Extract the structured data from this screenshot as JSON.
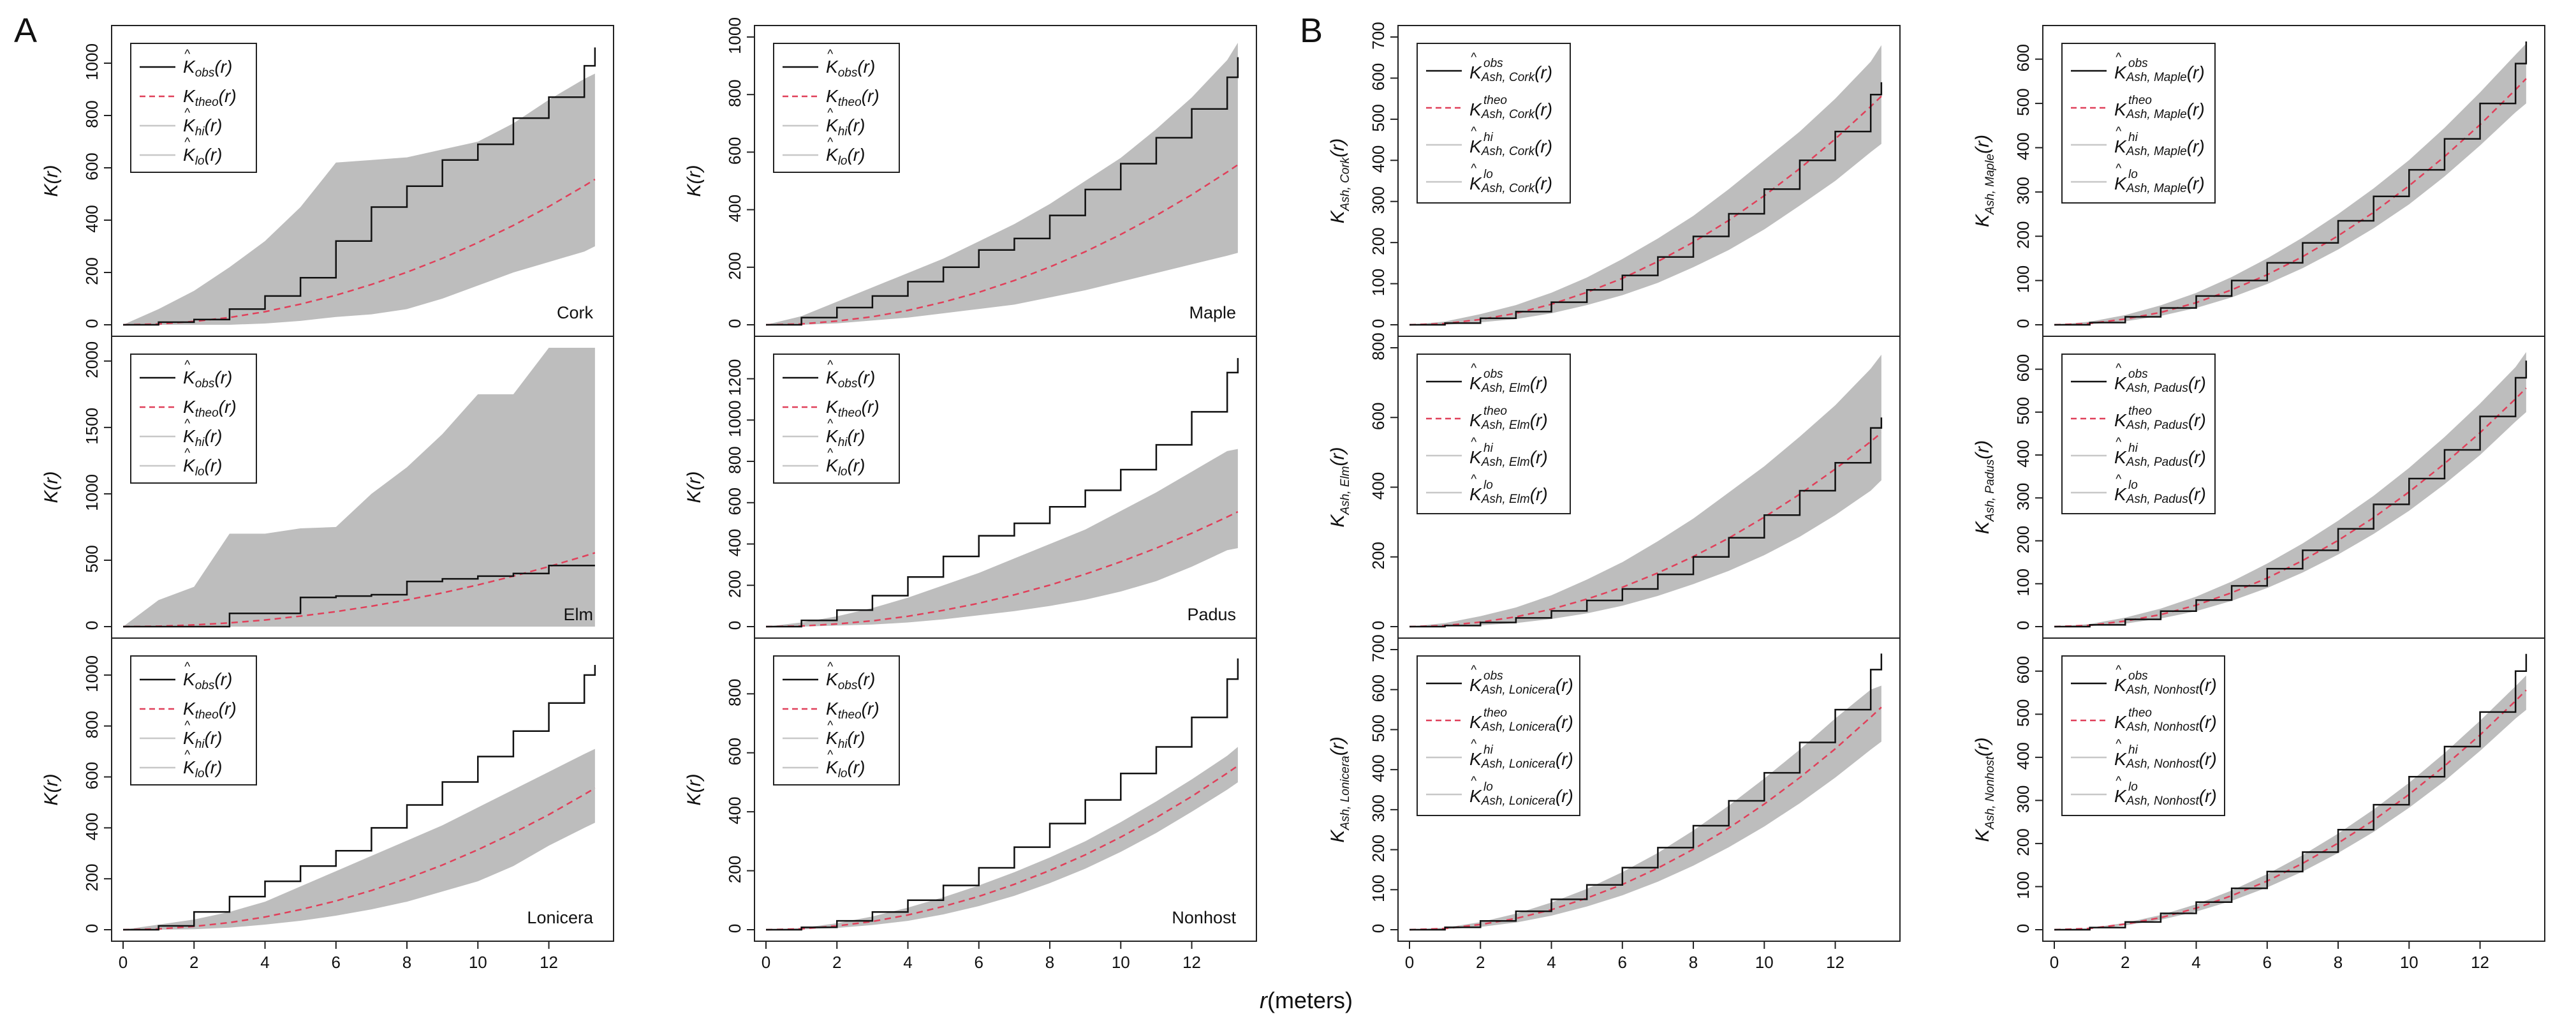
{
  "figure": {
    "panel_a_letter": "A",
    "panel_b_letter": "B",
    "xlabel_r": "r",
    "xlabel_rest": "(meters)"
  },
  "chart_data": [
    {
      "type": "line",
      "group": "A",
      "name": "Cork",
      "ylabel": "K(r)",
      "legend": "A",
      "xlim": [
        0,
        13.5
      ],
      "ylim": [
        0,
        1100
      ],
      "yticks": [
        0,
        200,
        400,
        600,
        800,
        1000
      ],
      "xticks": [
        0,
        2,
        4,
        6,
        8,
        10,
        12
      ],
      "r": [
        0,
        1,
        2,
        3,
        4,
        5,
        6,
        7,
        8,
        9,
        10,
        11,
        12,
        13,
        13.3
      ],
      "obs": [
        0,
        10,
        20,
        60,
        110,
        180,
        320,
        450,
        530,
        630,
        690,
        790,
        870,
        990,
        1060
      ],
      "theo": [
        0,
        3,
        13,
        28,
        50,
        79,
        113,
        154,
        201,
        254,
        314,
        380,
        452,
        531,
        556
      ],
      "hi": [
        0,
        60,
        130,
        220,
        320,
        450,
        620,
        630,
        640,
        670,
        700,
        770,
        860,
        940,
        960
      ],
      "lo": [
        0,
        0,
        0,
        0,
        5,
        15,
        30,
        40,
        60,
        100,
        150,
        200,
        240,
        280,
        300
      ]
    },
    {
      "type": "line",
      "group": "A",
      "name": "Elm",
      "ylabel": "K(r)",
      "legend": "A",
      "xlim": [
        0,
        13.5
      ],
      "ylim": [
        0,
        2100
      ],
      "yticks": [
        0,
        500,
        1000,
        1500,
        2000
      ],
      "xticks": [
        0,
        2,
        4,
        6,
        8,
        10,
        12
      ],
      "r": [
        0,
        1,
        2,
        3,
        4,
        5,
        6,
        7,
        8,
        9,
        10,
        11,
        12,
        13,
        13.3
      ],
      "obs": [
        0,
        0,
        0,
        100,
        100,
        220,
        230,
        240,
        340,
        360,
        380,
        400,
        460,
        460,
        460
      ],
      "theo": [
        0,
        3,
        13,
        28,
        50,
        79,
        113,
        154,
        201,
        254,
        314,
        380,
        452,
        531,
        556
      ],
      "hi": [
        0,
        200,
        300,
        700,
        700,
        740,
        750,
        1000,
        1200,
        1450,
        1750,
        1750,
        2100,
        2100,
        2100
      ],
      "lo": [
        0,
        0,
        0,
        0,
        0,
        0,
        0,
        0,
        0,
        0,
        0,
        0,
        0,
        0,
        0
      ]
    },
    {
      "type": "line",
      "group": "A",
      "name": "Lonicera",
      "ylabel": "K(r)",
      "legend": "A",
      "xlim": [
        0,
        13.5
      ],
      "ylim": [
        0,
        1100
      ],
      "yticks": [
        0,
        200,
        400,
        600,
        800,
        1000
      ],
      "xticks": [
        0,
        2,
        4,
        6,
        8,
        10,
        12
      ],
      "r": [
        0,
        1,
        2,
        3,
        4,
        5,
        6,
        7,
        8,
        9,
        10,
        11,
        12,
        13,
        13.3
      ],
      "obs": [
        0,
        15,
        70,
        130,
        190,
        250,
        310,
        400,
        490,
        580,
        680,
        780,
        890,
        1000,
        1040
      ],
      "theo": [
        0,
        3,
        13,
        28,
        50,
        79,
        113,
        154,
        201,
        254,
        314,
        380,
        452,
        531,
        556
      ],
      "hi": [
        0,
        20,
        40,
        70,
        110,
        170,
        230,
        290,
        350,
        410,
        480,
        550,
        620,
        690,
        710
      ],
      "lo": [
        0,
        0,
        2,
        8,
        20,
        35,
        55,
        80,
        110,
        150,
        190,
        250,
        330,
        400,
        420
      ]
    },
    {
      "type": "line",
      "group": "A",
      "name": "Maple",
      "ylabel": "K(r)",
      "legend": "A",
      "xlim": [
        0,
        13.5
      ],
      "ylim": [
        0,
        1000
      ],
      "yticks": [
        0,
        200,
        400,
        600,
        800,
        1000
      ],
      "xticks": [
        0,
        2,
        4,
        6,
        8,
        10,
        12
      ],
      "r": [
        0,
        1,
        2,
        3,
        4,
        5,
        6,
        7,
        8,
        9,
        10,
        11,
        12,
        13,
        13.3
      ],
      "obs": [
        0,
        25,
        60,
        100,
        150,
        200,
        260,
        300,
        380,
        470,
        560,
        650,
        750,
        860,
        930
      ],
      "theo": [
        0,
        3,
        13,
        28,
        50,
        79,
        113,
        154,
        201,
        254,
        314,
        380,
        452,
        531,
        556
      ],
      "hi": [
        0,
        30,
        80,
        130,
        180,
        230,
        290,
        350,
        420,
        500,
        580,
        680,
        790,
        920,
        980
      ],
      "lo": [
        0,
        0,
        5,
        15,
        25,
        40,
        55,
        70,
        95,
        120,
        150,
        180,
        210,
        240,
        250
      ]
    },
    {
      "type": "line",
      "group": "A",
      "name": "Padus",
      "ylabel": "K(r)",
      "legend": "A",
      "xlim": [
        0,
        13.5
      ],
      "ylim": [
        0,
        1350
      ],
      "yticks": [
        0,
        200,
        400,
        600,
        800,
        1000,
        1200
      ],
      "xticks": [
        0,
        2,
        4,
        6,
        8,
        10,
        12
      ],
      "r": [
        0,
        1,
        2,
        3,
        4,
        5,
        6,
        7,
        8,
        9,
        10,
        11,
        12,
        13,
        13.3
      ],
      "obs": [
        0,
        30,
        80,
        150,
        240,
        340,
        440,
        500,
        580,
        660,
        760,
        880,
        1040,
        1230,
        1300
      ],
      "theo": [
        0,
        3,
        13,
        28,
        50,
        79,
        113,
        154,
        201,
        254,
        314,
        380,
        452,
        531,
        556
      ],
      "hi": [
        0,
        20,
        50,
        90,
        140,
        200,
        260,
        330,
        400,
        470,
        560,
        650,
        750,
        850,
        860
      ],
      "lo": [
        0,
        0,
        5,
        10,
        20,
        35,
        55,
        75,
        100,
        130,
        170,
        220,
        290,
        370,
        380
      ]
    },
    {
      "type": "line",
      "group": "A",
      "name": "Nonhost",
      "ylabel": "K(r)",
      "legend": "A",
      "xlim": [
        0,
        13.5
      ],
      "ylim": [
        0,
        950
      ],
      "yticks": [
        0,
        200,
        400,
        600,
        800
      ],
      "xticks": [
        0,
        2,
        4,
        6,
        8,
        10,
        12
      ],
      "r": [
        0,
        1,
        2,
        3,
        4,
        5,
        6,
        7,
        8,
        9,
        10,
        11,
        12,
        13,
        13.3
      ],
      "obs": [
        0,
        8,
        30,
        60,
        100,
        150,
        210,
        280,
        360,
        440,
        530,
        620,
        720,
        850,
        920
      ],
      "theo": [
        0,
        3,
        13,
        28,
        50,
        79,
        113,
        154,
        201,
        254,
        314,
        380,
        452,
        531,
        556
      ],
      "hi": [
        0,
        6,
        22,
        45,
        75,
        110,
        150,
        195,
        245,
        300,
        365,
        435,
        510,
        590,
        620
      ],
      "lo": [
        0,
        1,
        6,
        16,
        30,
        52,
        80,
        115,
        158,
        207,
        264,
        328,
        400,
        475,
        500
      ]
    },
    {
      "type": "line",
      "group": "B",
      "name": "Cork",
      "ylabel_main": "K",
      "ylabel_sub": "Ash, Cork",
      "ylabel_tail": "(r)",
      "legend": "B",
      "xlim": [
        0,
        13.5
      ],
      "ylim": [
        0,
        700
      ],
      "yticks": [
        0,
        100,
        200,
        300,
        400,
        500,
        600,
        700
      ],
      "xticks": [
        0,
        2,
        4,
        6,
        8,
        10,
        12
      ],
      "r": [
        0,
        1,
        2,
        3,
        4,
        5,
        6,
        7,
        8,
        9,
        10,
        11,
        12,
        13,
        13.3
      ],
      "obs": [
        0,
        4,
        16,
        32,
        55,
        85,
        120,
        165,
        215,
        270,
        330,
        400,
        470,
        560,
        590
      ],
      "theo": [
        0,
        3,
        13,
        28,
        50,
        79,
        113,
        154,
        201,
        254,
        314,
        380,
        452,
        531,
        556
      ],
      "hi": [
        0,
        8,
        26,
        48,
        78,
        115,
        160,
        210,
        265,
        330,
        400,
        470,
        550,
        640,
        680
      ],
      "lo": [
        0,
        0,
        6,
        14,
        28,
        48,
        72,
        102,
        140,
        182,
        232,
        290,
        350,
        420,
        440
      ]
    },
    {
      "type": "line",
      "group": "B",
      "name": "Elm",
      "ylabel_main": "K",
      "ylabel_sub": "Ash, Elm",
      "ylabel_tail": "(r)",
      "legend": "B",
      "xlim": [
        0,
        13.5
      ],
      "ylim": [
        0,
        800
      ],
      "yticks": [
        0,
        200,
        400,
        600,
        800
      ],
      "xticks": [
        0,
        2,
        4,
        6,
        8,
        10,
        12
      ],
      "r": [
        0,
        1,
        2,
        3,
        4,
        5,
        6,
        7,
        8,
        9,
        10,
        11,
        12,
        13,
        13.3
      ],
      "obs": [
        0,
        3,
        12,
        25,
        45,
        75,
        108,
        150,
        200,
        255,
        320,
        390,
        470,
        570,
        600
      ],
      "theo": [
        0,
        3,
        13,
        28,
        50,
        79,
        113,
        154,
        201,
        254,
        314,
        380,
        452,
        531,
        556
      ],
      "hi": [
        0,
        10,
        30,
        55,
        90,
        135,
        185,
        245,
        310,
        385,
        460,
        545,
        635,
        740,
        780
      ],
      "lo": [
        0,
        0,
        4,
        10,
        22,
        38,
        60,
        88,
        122,
        160,
        205,
        258,
        320,
        390,
        420
      ]
    },
    {
      "type": "line",
      "group": "B",
      "name": "Lonicera",
      "ylabel_main": "K",
      "ylabel_sub": "Ash, Lonicera",
      "ylabel_tail": "(r)",
      "legend": "B",
      "xlim": [
        0,
        13.5
      ],
      "ylim": [
        0,
        700
      ],
      "yticks": [
        0,
        100,
        200,
        300,
        400,
        500,
        600,
        700
      ],
      "xticks": [
        0,
        2,
        4,
        6,
        8,
        10,
        12
      ],
      "r": [
        0,
        1,
        2,
        3,
        4,
        5,
        6,
        7,
        8,
        9,
        10,
        11,
        12,
        13,
        13.3
      ],
      "obs": [
        0,
        6,
        22,
        46,
        76,
        112,
        155,
        205,
        260,
        322,
        392,
        468,
        550,
        650,
        690
      ],
      "theo": [
        0,
        3,
        13,
        28,
        50,
        79,
        113,
        154,
        201,
        254,
        314,
        380,
        452,
        531,
        556
      ],
      "hi": [
        0,
        5,
        19,
        40,
        68,
        102,
        144,
        192,
        248,
        310,
        378,
        450,
        528,
        600,
        610
      ],
      "lo": [
        0,
        1,
        7,
        18,
        35,
        58,
        86,
        120,
        160,
        206,
        258,
        316,
        380,
        450,
        470
      ]
    },
    {
      "type": "line",
      "group": "B",
      "name": "Maple",
      "ylabel_main": "K",
      "ylabel_sub": "Ash, Maple",
      "ylabel_tail": "(r)",
      "legend": "B",
      "xlim": [
        0,
        13.5
      ],
      "ylim": [
        0,
        650
      ],
      "yticks": [
        0,
        100,
        200,
        300,
        400,
        500,
        600
      ],
      "xticks": [
        0,
        2,
        4,
        6,
        8,
        10,
        12
      ],
      "r": [
        0,
        1,
        2,
        3,
        4,
        5,
        6,
        7,
        8,
        9,
        10,
        11,
        12,
        13,
        13.3
      ],
      "obs": [
        0,
        5,
        18,
        38,
        65,
        100,
        140,
        185,
        235,
        290,
        350,
        420,
        500,
        590,
        640
      ],
      "theo": [
        0,
        3,
        13,
        28,
        50,
        79,
        113,
        154,
        201,
        254,
        314,
        380,
        452,
        531,
        556
      ],
      "hi": [
        0,
        7,
        22,
        44,
        72,
        108,
        150,
        197,
        250,
        308,
        372,
        445,
        525,
        610,
        635
      ],
      "lo": [
        0,
        1,
        8,
        20,
        38,
        62,
        92,
        128,
        170,
        218,
        272,
        335,
        405,
        480,
        500
      ]
    },
    {
      "type": "line",
      "group": "B",
      "name": "Padus",
      "ylabel_main": "K",
      "ylabel_sub": "Ash, Padus",
      "ylabel_tail": "(r)",
      "legend": "B",
      "xlim": [
        0,
        13.5
      ],
      "ylim": [
        0,
        650
      ],
      "yticks": [
        0,
        100,
        200,
        300,
        400,
        500,
        600
      ],
      "xticks": [
        0,
        2,
        4,
        6,
        8,
        10,
        12
      ],
      "r": [
        0,
        1,
        2,
        3,
        4,
        5,
        6,
        7,
        8,
        9,
        10,
        11,
        12,
        13,
        13.3
      ],
      "obs": [
        0,
        4,
        17,
        36,
        62,
        95,
        135,
        178,
        228,
        285,
        345,
        412,
        490,
        580,
        620
      ],
      "theo": [
        0,
        3,
        13,
        28,
        50,
        79,
        113,
        154,
        201,
        254,
        314,
        380,
        452,
        531,
        556
      ],
      "hi": [
        0,
        6,
        21,
        42,
        70,
        105,
        147,
        194,
        247,
        305,
        370,
        442,
        520,
        605,
        640
      ],
      "lo": [
        0,
        1,
        7,
        19,
        36,
        60,
        90,
        126,
        168,
        216,
        270,
        332,
        400,
        478,
        500
      ]
    },
    {
      "type": "line",
      "group": "B",
      "name": "Nonhost",
      "ylabel_main": "K",
      "ylabel_sub": "Ash, Nonhost",
      "ylabel_tail": "(r)",
      "legend": "B",
      "xlim": [
        0,
        13.5
      ],
      "ylim": [
        0,
        650
      ],
      "yticks": [
        0,
        100,
        200,
        300,
        400,
        500,
        600
      ],
      "xticks": [
        0,
        2,
        4,
        6,
        8,
        10,
        12
      ],
      "r": [
        0,
        1,
        2,
        3,
        4,
        5,
        6,
        7,
        8,
        9,
        10,
        11,
        12,
        13,
        13.3
      ],
      "obs": [
        0,
        5,
        18,
        38,
        64,
        96,
        135,
        180,
        232,
        290,
        355,
        425,
        505,
        600,
        640
      ],
      "theo": [
        0,
        3,
        13,
        28,
        50,
        79,
        113,
        154,
        201,
        254,
        314,
        380,
        452,
        531,
        556
      ],
      "hi": [
        0,
        4,
        16,
        34,
        59,
        91,
        129,
        173,
        223,
        279,
        341,
        410,
        485,
        565,
        590
      ],
      "lo": [
        0,
        2,
        10,
        23,
        42,
        67,
        98,
        135,
        178,
        227,
        283,
        345,
        415,
        490,
        510
      ]
    }
  ],
  "legend_a": [
    {
      "main": "K",
      "hat": true,
      "sub": "obs",
      "tail": "(r)"
    },
    {
      "main": "K",
      "hat": false,
      "sub": "theo",
      "tail": "(r)"
    },
    {
      "main": "K",
      "hat": true,
      "sub": "hi",
      "tail": "(r)"
    },
    {
      "main": "K",
      "hat": true,
      "sub": "lo",
      "tail": "(r)"
    }
  ],
  "legend_b_sup": [
    "obs",
    "theo",
    "hi",
    "lo"
  ],
  "legend_b_prefix": "Ash, ",
  "legend_b_tail": "(r)",
  "colors": {
    "obs": "#111111",
    "theo": "#e0405a",
    "envelope": "#bdbdbd",
    "axis": "#222222"
  }
}
